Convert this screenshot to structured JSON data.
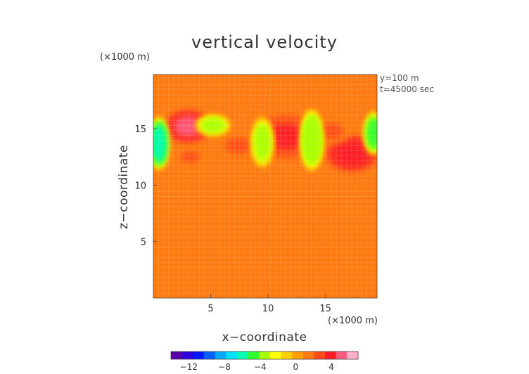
{
  "chart_data": {
    "type": "heatmap",
    "title": "vertical velocity",
    "xlabel": "x−coordinate",
    "ylabel": "z−coordinate",
    "x_units": "(×1000 m)",
    "y_units": "(×1000 m)",
    "annotations": [
      "y=100 m",
      "t=45000 sec"
    ],
    "xlim": [
      0,
      19.5
    ],
    "ylim": [
      0,
      19.8
    ],
    "x_ticks": [
      5,
      10,
      15
    ],
    "y_ticks": [
      5,
      10,
      15
    ],
    "background_value": 1.5,
    "features": [
      {
        "x": 0.5,
        "z": 13.7,
        "w": 0.5,
        "h": 2.2,
        "value": -6
      },
      {
        "x": 5.2,
        "z": 15.3,
        "w": 0.9,
        "h": 0.9,
        "value": -3
      },
      {
        "x": 9.5,
        "z": 13.8,
        "w": 0.6,
        "h": 2.2,
        "value": -3
      },
      {
        "x": 13.8,
        "z": 14.0,
        "w": 0.6,
        "h": 2.6,
        "value": -4
      },
      {
        "x": 19.2,
        "z": 14.6,
        "w": 0.5,
        "h": 1.8,
        "value": -5
      },
      {
        "x": 3.0,
        "z": 15.2,
        "w": 1.6,
        "h": 1.2,
        "value": 5
      },
      {
        "x": 11.5,
        "z": 14.3,
        "w": 2.6,
        "h": 1.6,
        "value": 4
      },
      {
        "x": 17.3,
        "z": 12.8,
        "w": 1.8,
        "h": 1.3,
        "value": 4.5
      },
      {
        "x": 7.5,
        "z": 13.5,
        "w": 1.8,
        "h": 1.0,
        "value": 3
      },
      {
        "x": 15.5,
        "z": 14.8,
        "w": 1.5,
        "h": 1.0,
        "value": 3
      },
      {
        "x": 3.2,
        "z": 12.5,
        "w": 1.2,
        "h": 0.7,
        "value": 3
      }
    ],
    "colorbar": {
      "min": -14,
      "max": 7,
      "ticks": [
        -12,
        -8,
        -4,
        0,
        4
      ],
      "tick_labels": [
        "−12",
        "−8",
        "−4",
        "0",
        "4"
      ],
      "colors": [
        "#5a00a8",
        "#3000d8",
        "#0018ff",
        "#0060ff",
        "#00a8ff",
        "#00e0ff",
        "#00ffb0",
        "#30ff30",
        "#a8ff00",
        "#ffff00",
        "#ffd000",
        "#ffa000",
        "#ff7a10",
        "#ff4c18",
        "#ff1c28",
        "#ff5c80",
        "#ffb0c8"
      ]
    },
    "grid": true
  }
}
